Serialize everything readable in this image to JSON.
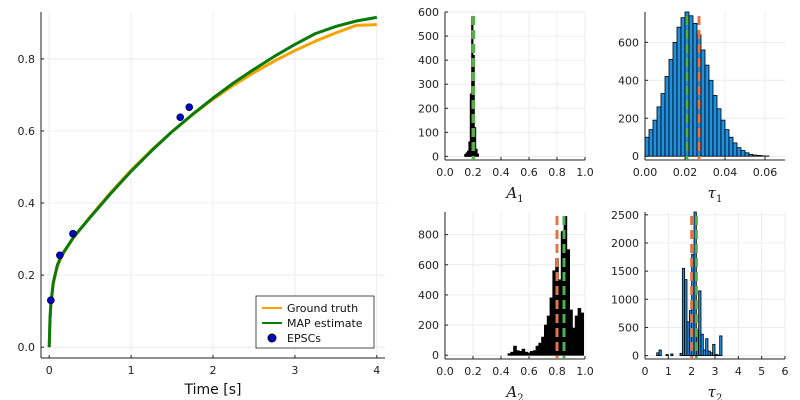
{
  "colors": {
    "ground_truth": "#f5a300",
    "map_estimate": "#0a7a0a",
    "epsc": "#0000cc",
    "hist_fill_tau": "#1f8fe0",
    "hist_fill_A": "#000000",
    "ground_truth_vline": "#e0744a",
    "map_vline": "#4caf50",
    "grid": "#ececec"
  },
  "chart_data": [
    {
      "id": "main",
      "type": "line",
      "xlabel": "Time [s]",
      "ylabel": "",
      "xlim": [
        -0.1,
        4.1
      ],
      "ylim": [
        -0.03,
        0.93
      ],
      "xticks": [
        "0",
        "1",
        "2",
        "3",
        "4"
      ],
      "xtick_values": [
        0,
        1,
        2,
        3,
        4
      ],
      "yticks": [
        "0.0",
        "0.2",
        "0.4",
        "0.6",
        "0.8"
      ],
      "ytick_values": [
        0,
        0.2,
        0.4,
        0.6,
        0.8
      ],
      "grid": true,
      "legend_position": "bottom-right",
      "series": [
        {
          "name": "Ground truth",
          "kind": "line",
          "color_key": "ground_truth",
          "x": [
            0,
            0.01,
            0.02,
            0.05,
            0.1,
            0.15,
            0.2,
            0.3,
            0.5,
            0.75,
            1.0,
            1.25,
            1.5,
            1.75,
            2.0,
            2.25,
            2.5,
            2.75,
            3.0,
            3.25,
            3.5,
            3.75,
            4.0
          ],
          "y": [
            0.0,
            0.075,
            0.115,
            0.176,
            0.224,
            0.251,
            0.27,
            0.305,
            0.362,
            0.429,
            0.491,
            0.547,
            0.598,
            0.645,
            0.688,
            0.727,
            0.762,
            0.794,
            0.823,
            0.849,
            0.872,
            0.893,
            0.895
          ]
        },
        {
          "name": "MAP estimate",
          "kind": "line",
          "color_key": "map_estimate",
          "x": [
            0,
            0.01,
            0.02,
            0.05,
            0.1,
            0.15,
            0.2,
            0.3,
            0.5,
            0.75,
            1.0,
            1.25,
            1.5,
            1.75,
            2.0,
            2.25,
            2.5,
            2.75,
            3.0,
            3.25,
            3.5,
            3.75,
            4.0
          ],
          "y": [
            0.0,
            0.08,
            0.12,
            0.18,
            0.228,
            0.254,
            0.272,
            0.306,
            0.36,
            0.426,
            0.488,
            0.545,
            0.598,
            0.646,
            0.691,
            0.733,
            0.771,
            0.807,
            0.84,
            0.87,
            0.89,
            0.905,
            0.915
          ]
        },
        {
          "name": "EPSCs",
          "kind": "scatter",
          "color_key": "epsc",
          "x": [
            0.02,
            0.13,
            0.29,
            1.6,
            1.71
          ],
          "y": [
            0.13,
            0.255,
            0.315,
            0.638,
            0.666
          ]
        }
      ]
    },
    {
      "id": "A1",
      "type": "bar",
      "xlabel": "A",
      "xlabel_sub": "1",
      "xlim": [
        0,
        1
      ],
      "ylim": [
        -15,
        600
      ],
      "xticks": [
        "0.0",
        "0.2",
        "0.4",
        "0.6",
        "0.8",
        "1.0"
      ],
      "xtick_values": [
        0,
        0.2,
        0.4,
        0.6,
        0.8,
        1.0
      ],
      "yticks": [
        "0",
        "100",
        "200",
        "300",
        "400",
        "500",
        "600"
      ],
      "ytick_values": [
        0,
        100,
        200,
        300,
        400,
        500,
        600
      ],
      "fill_key": "hist_fill_A",
      "bin_edges": [
        0.14,
        0.15,
        0.16,
        0.17,
        0.18,
        0.19,
        0.2,
        0.21,
        0.22,
        0.23,
        0.24
      ],
      "counts": [
        8,
        15,
        22,
        60,
        260,
        580,
        420,
        120,
        30,
        10
      ],
      "vlines": [
        {
          "x": 0.2,
          "color_key": "ground_truth_vline"
        },
        {
          "x": 0.205,
          "color_key": "map_vline"
        }
      ]
    },
    {
      "id": "tau1",
      "type": "bar",
      "xlabel": "τ",
      "xlabel_sub": "1",
      "xlim": [
        0,
        0.07
      ],
      "ylim": [
        -20,
        760
      ],
      "xticks": [
        "0.00",
        "0.02",
        "0.04",
        "0.06"
      ],
      "xtick_values": [
        0,
        0.02,
        0.04,
        0.06
      ],
      "yticks": [
        "0",
        "200",
        "400",
        "600"
      ],
      "ytick_values": [
        0,
        200,
        400,
        600
      ],
      "fill_key": "hist_fill_tau",
      "bin_edges": [
        0.0,
        0.002,
        0.004,
        0.006,
        0.008,
        0.01,
        0.012,
        0.014,
        0.016,
        0.018,
        0.02,
        0.022,
        0.024,
        0.026,
        0.028,
        0.03,
        0.032,
        0.034,
        0.036,
        0.038,
        0.04,
        0.042,
        0.044,
        0.046,
        0.048,
        0.05,
        0.052,
        0.054,
        0.056,
        0.058,
        0.06,
        0.062
      ],
      "counts": [
        100,
        140,
        190,
        260,
        330,
        420,
        510,
        600,
        680,
        730,
        760,
        740,
        700,
        640,
        560,
        480,
        400,
        320,
        250,
        190,
        140,
        100,
        70,
        45,
        30,
        18,
        10,
        6,
        4,
        2,
        1
      ],
      "vlines": [
        {
          "x": 0.027,
          "color_key": "ground_truth_vline"
        },
        {
          "x": 0.021,
          "color_key": "map_vline"
        }
      ]
    },
    {
      "id": "A2",
      "type": "bar",
      "xlabel": "A",
      "xlabel_sub": "2",
      "xlim": [
        0,
        1
      ],
      "ylim": [
        -25,
        950
      ],
      "xticks": [
        "0.0",
        "0.2",
        "0.4",
        "0.6",
        "0.8",
        "1.0"
      ],
      "xtick_values": [
        0,
        0.2,
        0.4,
        0.6,
        0.8,
        1.0
      ],
      "yticks": [
        "0",
        "200",
        "400",
        "600",
        "800"
      ],
      "ytick_values": [
        0,
        200,
        400,
        600,
        800
      ],
      "fill_key": "hist_fill_A",
      "bin_edges": [
        0.45,
        0.47,
        0.49,
        0.51,
        0.53,
        0.55,
        0.57,
        0.59,
        0.61,
        0.63,
        0.65,
        0.67,
        0.69,
        0.71,
        0.73,
        0.75,
        0.77,
        0.79,
        0.81,
        0.83,
        0.85,
        0.87,
        0.89,
        0.91,
        0.93,
        0.95,
        0.97,
        0.99
      ],
      "counts": [
        10,
        20,
        60,
        30,
        25,
        40,
        20,
        15,
        25,
        30,
        60,
        80,
        120,
        200,
        260,
        380,
        560,
        640,
        500,
        820,
        920,
        700,
        300,
        180,
        260,
        310,
        280
      ],
      "vlines": [
        {
          "x": 0.8,
          "color_key": "ground_truth_vline"
        },
        {
          "x": 0.85,
          "color_key": "map_vline"
        }
      ]
    },
    {
      "id": "tau2",
      "type": "bar",
      "xlabel": "τ",
      "xlabel_sub": "2",
      "xlim": [
        0,
        6
      ],
      "ylim": [
        -60,
        2550
      ],
      "xticks": [
        "0",
        "1",
        "2",
        "3",
        "4",
        "5",
        "6"
      ],
      "xtick_values": [
        0,
        1,
        2,
        3,
        4,
        5,
        6
      ],
      "yticks": [
        "0",
        "500",
        "1000",
        "1500",
        "2000",
        "2500"
      ],
      "ytick_values": [
        0,
        500,
        1000,
        1500,
        2000,
        2500
      ],
      "fill_key": "hist_fill_tau",
      "bin_edges": [
        0.5,
        0.6,
        0.7,
        0.8,
        0.9,
        1.0,
        1.1,
        1.2,
        1.3,
        1.4,
        1.5,
        1.6,
        1.7,
        1.8,
        1.9,
        2.0,
        2.1,
        2.2,
        2.3,
        2.4,
        2.5,
        2.6,
        2.7,
        2.8,
        2.9,
        3.0,
        3.1,
        3.2,
        3.3
      ],
      "counts": [
        50,
        100,
        0,
        0,
        20,
        0,
        30,
        0,
        0,
        0,
        40,
        1550,
        1350,
        600,
        800,
        1800,
        2550,
        450,
        1150,
        380,
        100,
        300,
        80,
        50,
        200,
        20,
        10,
        350
      ],
      "vlines": [
        {
          "x": 2.0,
          "color_key": "ground_truth_vline"
        },
        {
          "x": 2.2,
          "color_key": "map_vline"
        }
      ]
    }
  ]
}
